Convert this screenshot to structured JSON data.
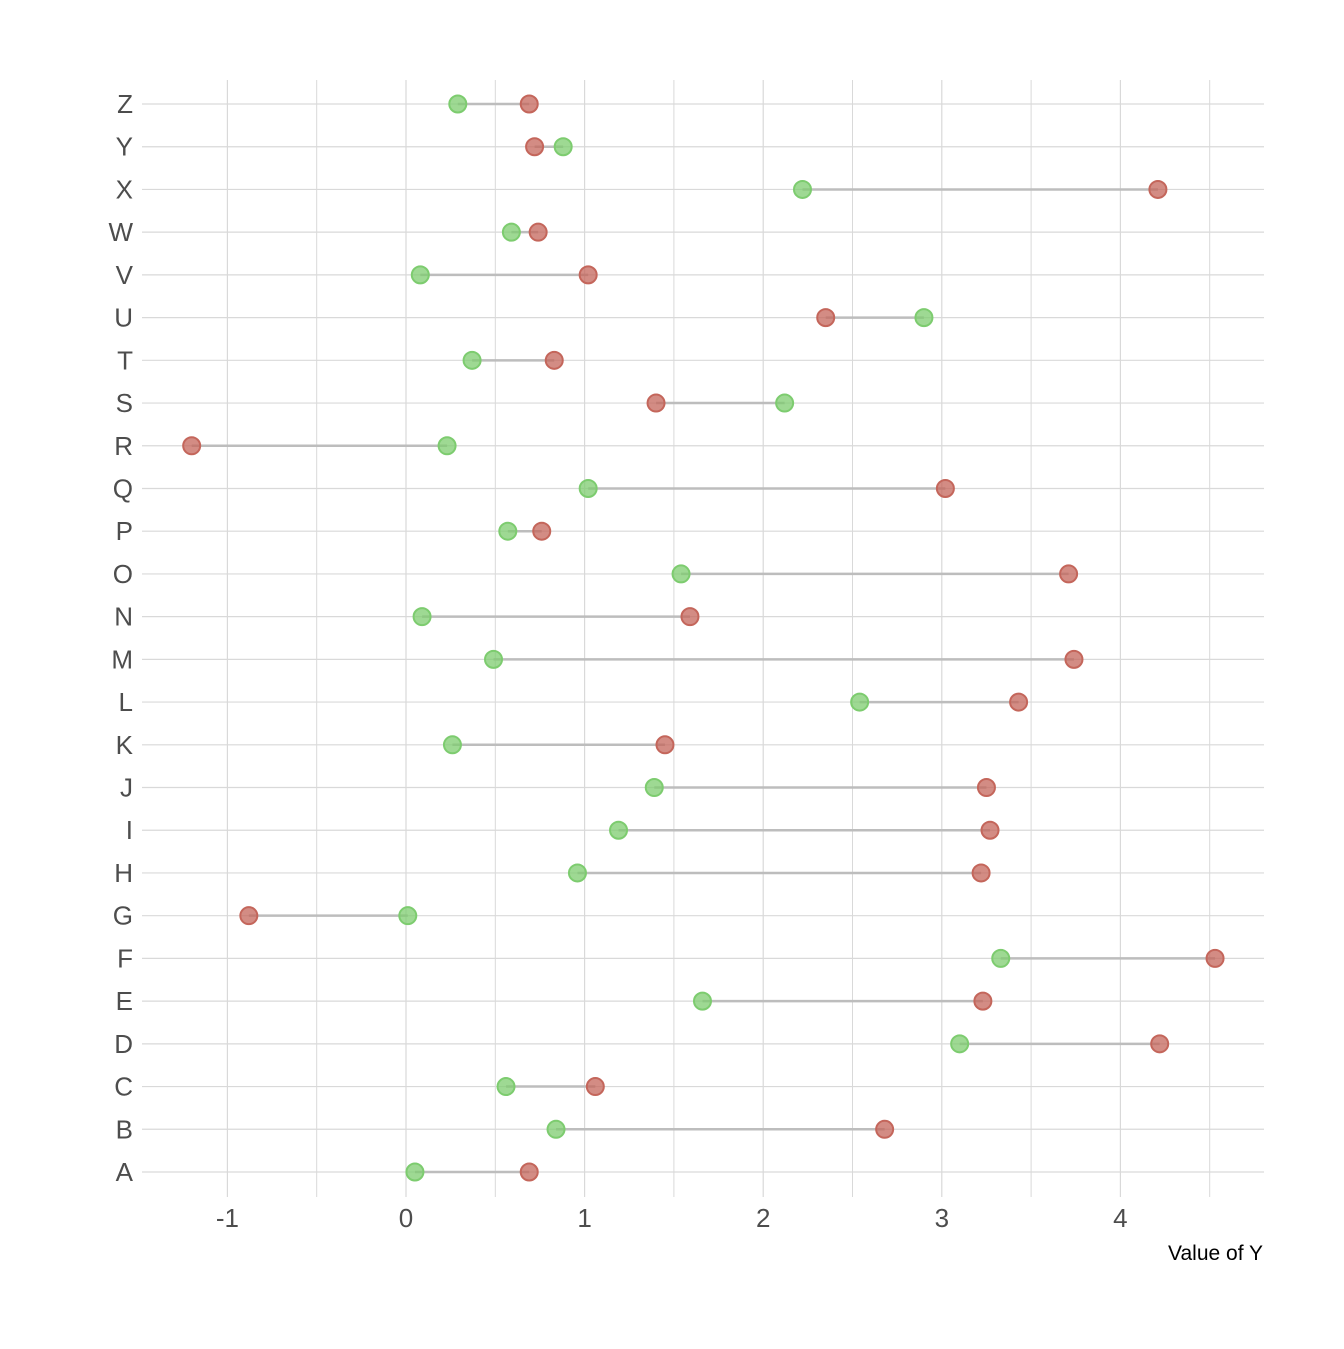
{
  "chart_data": {
    "type": "scatter",
    "subtype": "dumbbell",
    "title": "",
    "xlabel": "Value of Y",
    "ylabel": "",
    "xlim": [
      -1.25,
      4.8
    ],
    "x_ticks": [
      -1,
      0,
      1,
      2,
      3,
      4
    ],
    "x_tick_labels": [
      "-1",
      "0",
      "1",
      "2",
      "3",
      "4"
    ],
    "grid": true,
    "legend": "none",
    "categories": [
      "A",
      "B",
      "C",
      "D",
      "E",
      "F",
      "G",
      "H",
      "I",
      "J",
      "K",
      "L",
      "M",
      "N",
      "O",
      "P",
      "Q",
      "R",
      "S",
      "T",
      "U",
      "V",
      "W",
      "X",
      "Y",
      "Z"
    ],
    "series": [
      {
        "color": "#7dcc6f",
        "values": [
          0.05,
          0.84,
          0.56,
          3.1,
          1.66,
          3.33,
          0.01,
          0.96,
          1.19,
          1.39,
          0.26,
          2.54,
          0.49,
          0.09,
          1.54,
          0.57,
          1.02,
          0.23,
          2.12,
          0.37,
          2.9,
          0.08,
          0.59,
          2.22,
          0.88,
          0.29
        ]
      },
      {
        "color": "#c4665b",
        "values": [
          0.69,
          2.68,
          1.06,
          4.22,
          3.23,
          4.53,
          -0.88,
          3.22,
          3.27,
          3.25,
          1.45,
          3.43,
          3.74,
          1.59,
          3.71,
          0.76,
          3.02,
          -1.2,
          1.4,
          0.83,
          2.35,
          1.02,
          0.74,
          4.21,
          0.72,
          0.69
        ]
      }
    ],
    "segment_color": "#bdbdbd",
    "grid_color": "#d9d9d9"
  }
}
